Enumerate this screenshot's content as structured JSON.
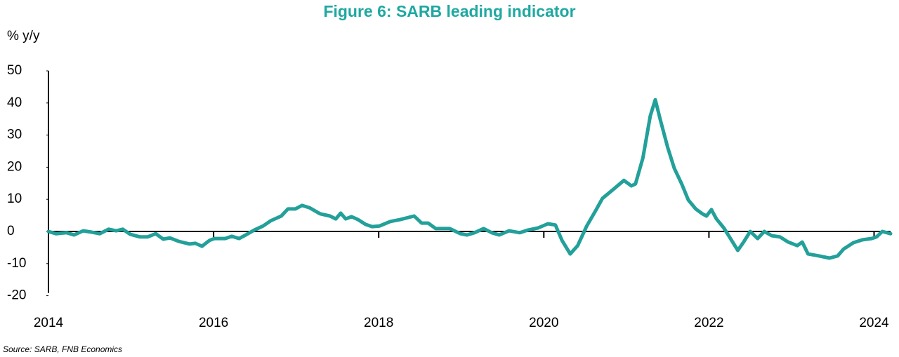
{
  "chart_data": {
    "type": "line",
    "title": "Figure 6: SARB leading indicator",
    "y_label": "% y/y",
    "source": "Source: SARB, FNB Economics",
    "x": [
      2014.0,
      2014.09,
      2014.22,
      2014.31,
      2014.42,
      2014.52,
      2014.62,
      2014.73,
      2014.82,
      2014.9,
      2014.99,
      2015.11,
      2015.2,
      2015.3,
      2015.39,
      2015.47,
      2015.58,
      2015.71,
      2015.78,
      2015.86,
      2015.95,
      2016.01,
      2016.14,
      2016.22,
      2016.31,
      2016.39,
      2016.49,
      2016.6,
      2016.69,
      2016.82,
      2016.9,
      2016.99,
      2017.07,
      2017.16,
      2017.29,
      2017.41,
      2017.48,
      2017.54,
      2017.6,
      2017.67,
      2017.75,
      2017.84,
      2017.92,
      2018.01,
      2018.14,
      2018.26,
      2018.43,
      2018.52,
      2018.6,
      2018.69,
      2018.86,
      2018.99,
      2019.07,
      2019.16,
      2019.27,
      2019.37,
      2019.46,
      2019.58,
      2019.71,
      2019.8,
      2019.93,
      2020.05,
      2020.14,
      2020.22,
      2020.32,
      2020.41,
      2020.52,
      2020.63,
      2020.71,
      2020.86,
      2020.97,
      2021.06,
      2021.11,
      2021.2,
      2021.29,
      2021.35,
      2021.41,
      2021.5,
      2021.58,
      2021.67,
      2021.75,
      2021.84,
      2021.92,
      2021.97,
      2022.03,
      2022.09,
      2022.18,
      2022.26,
      2022.35,
      2022.42,
      2022.5,
      2022.59,
      2022.67,
      2022.76,
      2022.86,
      2022.96,
      2023.07,
      2023.13,
      2023.2,
      2023.33,
      2023.46,
      2023.56,
      2023.63,
      2023.75,
      2023.86,
      2023.97,
      2024.03,
      2024.1,
      2024.2
    ],
    "series": [
      {
        "name": "SARB leading indicator",
        "color": "#23a09a",
        "values": [
          0,
          -0.7,
          -0.4,
          -1.1,
          0.2,
          -0.2,
          -0.7,
          0.7,
          0.2,
          0.7,
          -0.9,
          -1.7,
          -1.7,
          -0.7,
          -2.4,
          -2.0,
          -3.1,
          -3.9,
          -3.7,
          -4.6,
          -2.8,
          -2.2,
          -2.2,
          -1.5,
          -2.2,
          -1.1,
          0.4,
          1.7,
          3.3,
          4.8,
          7.0,
          7.0,
          8.1,
          7.4,
          5.5,
          4.8,
          3.9,
          5.7,
          3.9,
          4.6,
          3.7,
          2.2,
          1.5,
          1.7,
          3.1,
          3.7,
          4.8,
          2.6,
          2.6,
          0.9,
          0.9,
          -0.7,
          -1.1,
          -0.4,
          0.9,
          -0.4,
          -1.1,
          0.2,
          -0.4,
          0.4,
          1.1,
          2.4,
          2.0,
          -2.8,
          -7.0,
          -4.4,
          1.7,
          6.6,
          10.3,
          13.5,
          15.9,
          14.2,
          14.8,
          22.9,
          36.0,
          41.0,
          34.9,
          26.2,
          19.7,
          14.8,
          9.8,
          7.0,
          5.5,
          4.8,
          6.8,
          3.9,
          1.1,
          -2.2,
          -5.9,
          -3.3,
          0,
          -2.2,
          0,
          -1.3,
          -1.7,
          -3.3,
          -4.4,
          -3.3,
          -7.0,
          -7.6,
          -8.3,
          -7.6,
          -5.5,
          -3.5,
          -2.6,
          -2.2,
          -1.7,
          0,
          -0.7
        ]
      }
    ],
    "xlim": [
      2014,
      2024.2
    ],
    "xticks": [
      2014,
      2016,
      2018,
      2020,
      2022,
      2024
    ],
    "ylim": [
      -20,
      50
    ],
    "yticks": [
      -20,
      -10,
      0,
      10,
      20,
      30,
      40,
      50
    ],
    "grid": false
  }
}
